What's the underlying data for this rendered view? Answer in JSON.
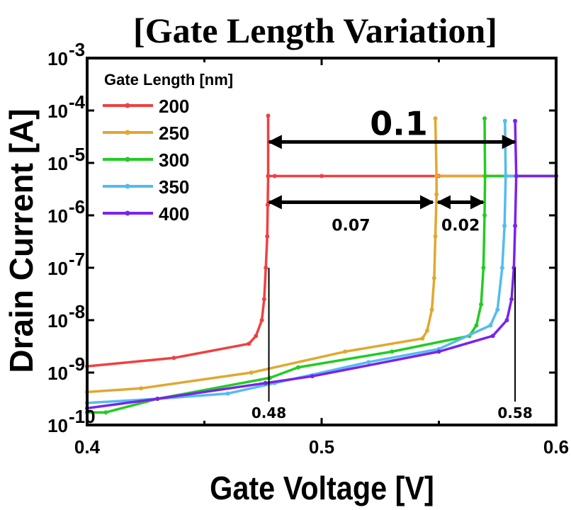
{
  "chart_data": {
    "type": "line",
    "title": "[Gate Length Variation]",
    "xlabel": "Gate Voltage [V]",
    "ylabel": "Drain Current [A]",
    "xlim": [
      0.4,
      0.6
    ],
    "ylim_log10": [
      -10,
      -3
    ],
    "yscale": "log",
    "x_ticks": [
      "0.4",
      "0.5",
      "0.6"
    ],
    "y_ticks": [
      {
        "exp": "-3"
      },
      {
        "exp": "-4"
      },
      {
        "exp": "-5"
      },
      {
        "exp": "-6"
      },
      {
        "exp": "-7"
      },
      {
        "exp": "-8"
      },
      {
        "exp": "-9"
      },
      {
        "exp": "-10"
      }
    ],
    "legend": {
      "title": "Gate Length [nm]",
      "placement": "top-left"
    },
    "series": [
      {
        "name": "200",
        "color": "#f04040",
        "points": [
          [
            0.4,
            -8.88
          ],
          [
            0.437,
            -8.72
          ],
          [
            0.469,
            -8.45
          ],
          [
            0.472,
            -8.3
          ],
          [
            0.4745,
            -8.0
          ],
          [
            0.4755,
            -7.6
          ],
          [
            0.4762,
            -7.0
          ],
          [
            0.4768,
            -6.4
          ],
          [
            0.477,
            -5.8
          ],
          [
            0.4772,
            -5.25
          ],
          [
            0.48,
            -5.25
          ],
          [
            0.5,
            -5.25
          ],
          [
            0.55,
            -5.25
          ],
          [
            0.6,
            -5.25
          ],
          [
            0.4772,
            -5.25
          ],
          [
            0.4772,
            -4.1
          ]
        ]
      },
      {
        "name": "250",
        "color": "#e0a830",
        "points": [
          [
            0.4,
            -9.37
          ],
          [
            0.423,
            -9.3
          ],
          [
            0.47,
            -9.0
          ],
          [
            0.51,
            -8.6
          ],
          [
            0.543,
            -8.35
          ],
          [
            0.545,
            -8.2
          ],
          [
            0.547,
            -7.8
          ],
          [
            0.548,
            -7.2
          ],
          [
            0.5485,
            -6.4
          ],
          [
            0.549,
            -5.6
          ],
          [
            0.549,
            -5.25
          ],
          [
            0.6,
            -5.25
          ],
          [
            0.549,
            -5.25
          ],
          [
            0.5485,
            -4.15
          ]
        ]
      },
      {
        "name": "300",
        "color": "#22cc22",
        "points": [
          [
            0.4,
            -9.76
          ],
          [
            0.408,
            -9.76
          ],
          [
            0.43,
            -9.5
          ],
          [
            0.478,
            -9.1
          ],
          [
            0.49,
            -8.9
          ],
          [
            0.53,
            -8.6
          ],
          [
            0.563,
            -8.3
          ],
          [
            0.566,
            -8.1
          ],
          [
            0.568,
            -7.7
          ],
          [
            0.569,
            -7.0
          ],
          [
            0.5695,
            -6.0
          ],
          [
            0.5697,
            -5.25
          ],
          [
            0.6,
            -5.25
          ],
          [
            0.5697,
            -5.25
          ],
          [
            0.5695,
            -4.15
          ]
        ]
      },
      {
        "name": "350",
        "color": "#55bbee",
        "points": [
          [
            0.4,
            -9.58
          ],
          [
            0.43,
            -9.5
          ],
          [
            0.46,
            -9.4
          ],
          [
            0.48,
            -9.2
          ],
          [
            0.52,
            -8.8
          ],
          [
            0.55,
            -8.55
          ],
          [
            0.572,
            -8.1
          ],
          [
            0.575,
            -7.8
          ],
          [
            0.577,
            -7.0
          ],
          [
            0.578,
            -6.2
          ],
          [
            0.5785,
            -5.25
          ],
          [
            0.6,
            -5.25
          ],
          [
            0.5785,
            -5.25
          ],
          [
            0.5782,
            -4.2
          ]
        ]
      },
      {
        "name": "400",
        "color": "#7a22ee",
        "points": [
          [
            0.4,
            -9.68
          ],
          [
            0.43,
            -9.5
          ],
          [
            0.476,
            -9.2
          ],
          [
            0.496,
            -9.07
          ],
          [
            0.55,
            -8.6
          ],
          [
            0.573,
            -8.3
          ],
          [
            0.579,
            -8.0
          ],
          [
            0.581,
            -7.6
          ],
          [
            0.582,
            -7.0
          ],
          [
            0.5825,
            -6.2
          ],
          [
            0.583,
            -5.25
          ],
          [
            0.6,
            -5.25
          ],
          [
            0.583,
            -5.25
          ],
          [
            0.5825,
            -4.2
          ]
        ]
      }
    ],
    "annotations": [
      {
        "label": "0.1",
        "from": 0.477,
        "to": 0.583,
        "y_log10": -4.6
      },
      {
        "label": "0.07",
        "from": 0.477,
        "to": 0.548,
        "y_log10": -5.75
      },
      {
        "label": "0.02",
        "from": 0.549,
        "to": 0.5695,
        "y_log10": -5.75
      },
      {
        "label": "0.48",
        "x": 0.4775,
        "line_top_log10": -7.0
      },
      {
        "label": "0.58",
        "x": 0.5825,
        "line_top_log10": -7.0
      }
    ]
  }
}
